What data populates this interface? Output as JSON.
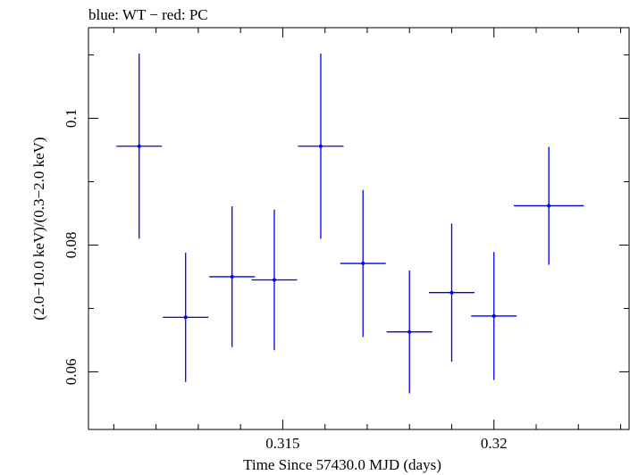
{
  "chart_data": {
    "type": "scatter",
    "title": "blue: WT − red: PC",
    "xlabel": "Time Since 57430.0 MJD (days)",
    "ylabel": "(2.0−10.0 keV)/(0.3−2.0 keV)",
    "xlim": [
      0.3104,
      0.3232
    ],
    "ylim": [
      0.0509,
      0.1143
    ],
    "x_ticks": [
      {
        "value": 0.315,
        "label": "0.315"
      },
      {
        "value": 0.32,
        "label": "0.32"
      }
    ],
    "y_ticks": [
      {
        "value": 0.06,
        "label": "0.06"
      },
      {
        "value": 0.08,
        "label": "0.08"
      },
      {
        "value": 0.1,
        "label": "0.1"
      }
    ],
    "x_minor_step": 0.001,
    "y_minor_step": 0.01,
    "series": [
      {
        "color": "#0000ee",
        "points": [
          {
            "x": 0.3116,
            "xerr": 0.00054,
            "y": 0.0956,
            "yerr": 0.0146
          },
          {
            "x": 0.3127,
            "xerr": 0.00054,
            "y": 0.0686,
            "yerr": 0.0102
          },
          {
            "x": 0.3138,
            "xerr": 0.00054,
            "y": 0.075,
            "yerr": 0.0111
          },
          {
            "x": 0.3148,
            "xerr": 0.00054,
            "y": 0.0745,
            "yerr": 0.0111
          },
          {
            "x": 0.3159,
            "xerr": 0.00054,
            "y": 0.0956,
            "yerr": 0.0146
          },
          {
            "x": 0.3169,
            "xerr": 0.00054,
            "y": 0.0771,
            "yerr": 0.0116
          },
          {
            "x": 0.318,
            "xerr": 0.00054,
            "y": 0.0663,
            "yerr": 0.0097
          },
          {
            "x": 0.319,
            "xerr": 0.00054,
            "y": 0.0725,
            "yerr": 0.0109
          },
          {
            "x": 0.32,
            "xerr": 0.00054,
            "y": 0.0688,
            "yerr": 0.0101
          },
          {
            "x": 0.3213,
            "xerr": 0.00083,
            "y": 0.0862,
            "yerr": 0.0093
          }
        ]
      }
    ]
  }
}
